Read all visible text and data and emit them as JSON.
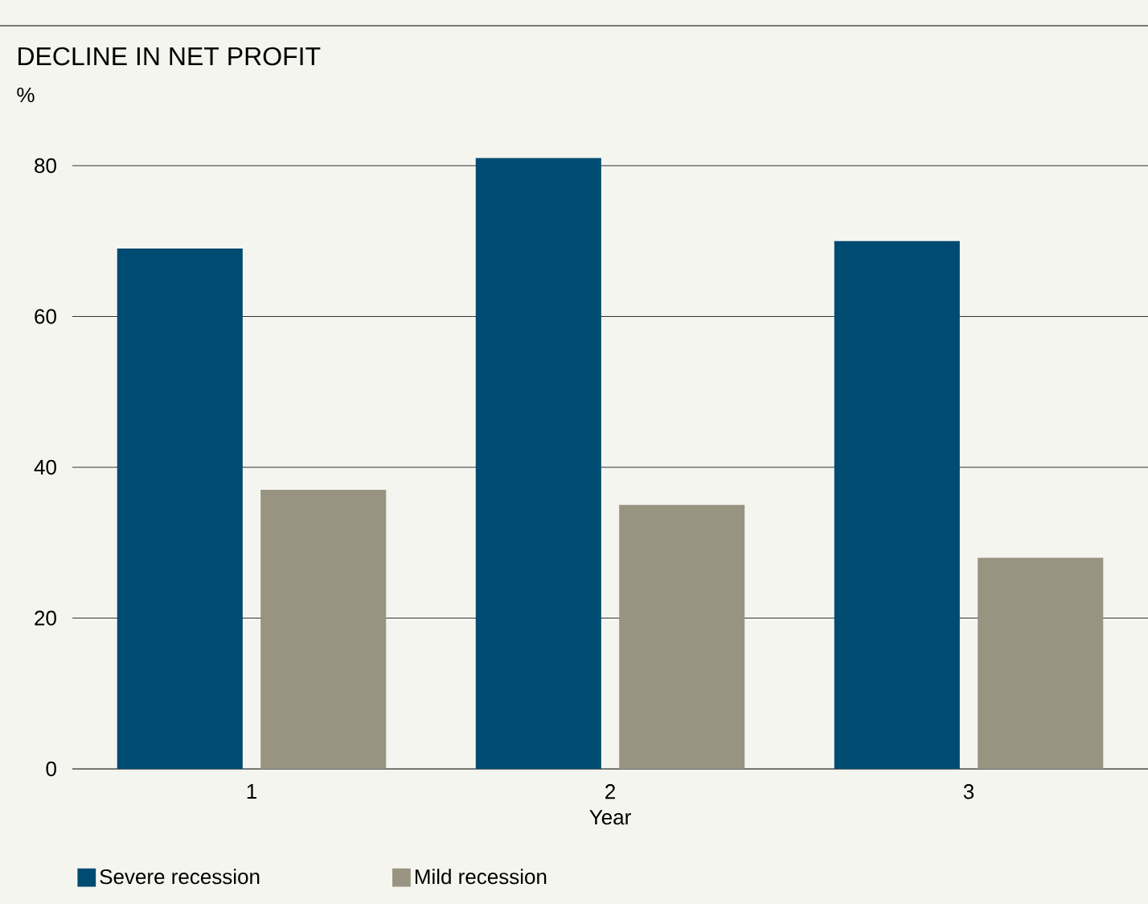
{
  "chart_data": {
    "type": "bar",
    "title": "DECLINE IN NET PROFIT",
    "ylabel": "%",
    "xlabel": "Year",
    "categories": [
      "1",
      "2",
      "3"
    ],
    "series": [
      {
        "name": "Severe recession",
        "color": "#004b71",
        "values": [
          69,
          81,
          70
        ]
      },
      {
        "name": "Mild recession",
        "color": "#999482",
        "values": [
          37,
          35,
          28
        ]
      }
    ],
    "ylim": [
      0,
      81
    ],
    "yticks": [
      0,
      20,
      40,
      60,
      80
    ],
    "grid": "y",
    "legend": "bottom left"
  }
}
